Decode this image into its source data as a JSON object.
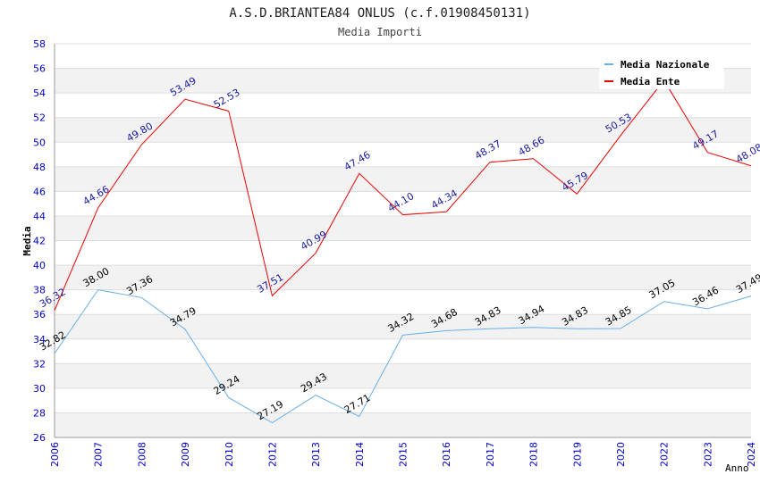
{
  "chart_data": {
    "type": "line",
    "title": "A.S.D.BRIANTEA84 ONLUS (c.f.01908450131)",
    "subtitle": "Media Importi",
    "xlabel": "Anno",
    "ylabel": "Media",
    "ylim": [
      26,
      58
    ],
    "ytick_step": 2,
    "grid": true,
    "legend_position": "top-right",
    "categories": [
      "2006",
      "2007",
      "2008",
      "2009",
      "2010",
      "2012",
      "2013",
      "2014",
      "2015",
      "2016",
      "2017",
      "2018",
      "2019",
      "2020",
      "2022",
      "2023",
      "2024"
    ],
    "series": [
      {
        "name": "Media Nazionale",
        "color": "#6aaee8",
        "label_color": "#000000",
        "values": [
          32.82,
          38.0,
          37.36,
          34.79,
          29.24,
          27.19,
          29.43,
          27.71,
          34.32,
          34.68,
          34.83,
          34.94,
          34.83,
          34.85,
          37.05,
          36.46,
          37.49
        ]
      },
      {
        "name": "Media Ente",
        "color": "#ee0000",
        "label_color": "#1a1aa0",
        "values": [
          36.32,
          44.66,
          49.8,
          53.49,
          52.53,
          37.51,
          40.99,
          47.46,
          44.1,
          44.34,
          48.37,
          48.66,
          45.79,
          50.53,
          55.03,
          49.17,
          48.08
        ]
      }
    ],
    "colors": {
      "tick_text": "#0000cc",
      "grid_band": "#f2f2f2",
      "grid_line": "#dddddd",
      "axis": "#999999"
    }
  }
}
